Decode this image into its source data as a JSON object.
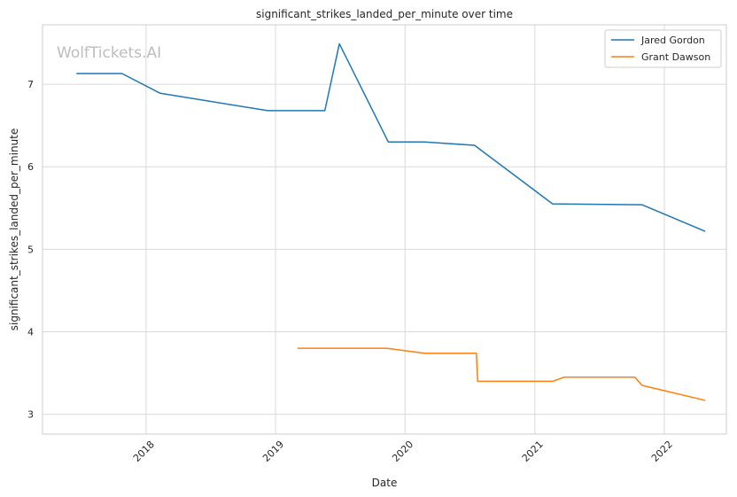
{
  "watermark": "WolfTickets.AI",
  "chart_data": {
    "type": "line",
    "title": "significant_strikes_landed_per_minute over time",
    "xlabel": "Date",
    "ylabel": "significant_strikes_landed_per_minute",
    "x_type": "date",
    "xlim": [
      "2017-03-15",
      "2022-06-25"
    ],
    "ylim": [
      2.76,
      7.72
    ],
    "x_ticks": [
      {
        "value": "2018-01-01",
        "label": "2018"
      },
      {
        "value": "2019-01-01",
        "label": "2019"
      },
      {
        "value": "2020-01-01",
        "label": "2020"
      },
      {
        "value": "2021-01-01",
        "label": "2021"
      },
      {
        "value": "2022-01-01",
        "label": "2022"
      }
    ],
    "y_ticks": [
      3,
      4,
      5,
      6,
      7
    ],
    "grid": true,
    "legend": "top-right",
    "series": [
      {
        "name": "Jared Gordon",
        "color": "#1f77b4",
        "points": [
          {
            "x": "2017-06-20",
            "y": 7.13
          },
          {
            "x": "2017-10-25",
            "y": 7.13
          },
          {
            "x": "2018-02-10",
            "y": 6.89
          },
          {
            "x": "2018-12-10",
            "y": 6.68
          },
          {
            "x": "2019-05-20",
            "y": 6.68
          },
          {
            "x": "2019-06-30",
            "y": 7.49
          },
          {
            "x": "2019-11-15",
            "y": 6.3
          },
          {
            "x": "2020-02-25",
            "y": 6.3
          },
          {
            "x": "2020-07-15",
            "y": 6.26
          },
          {
            "x": "2021-02-20",
            "y": 5.55
          },
          {
            "x": "2021-10-30",
            "y": 5.54
          },
          {
            "x": "2022-04-25",
            "y": 5.22
          }
        ]
      },
      {
        "name": "Grant Dawson",
        "color": "#ff7f0e",
        "points": [
          {
            "x": "2019-03-05",
            "y": 3.8
          },
          {
            "x": "2019-11-10",
            "y": 3.8
          },
          {
            "x": "2020-02-25",
            "y": 3.74
          },
          {
            "x": "2020-07-20",
            "y": 3.74
          },
          {
            "x": "2020-07-24",
            "y": 3.4
          },
          {
            "x": "2021-02-20",
            "y": 3.4
          },
          {
            "x": "2021-03-25",
            "y": 3.45
          },
          {
            "x": "2021-10-10",
            "y": 3.45
          },
          {
            "x": "2021-10-30",
            "y": 3.35
          },
          {
            "x": "2022-04-25",
            "y": 3.17
          }
        ]
      }
    ]
  }
}
